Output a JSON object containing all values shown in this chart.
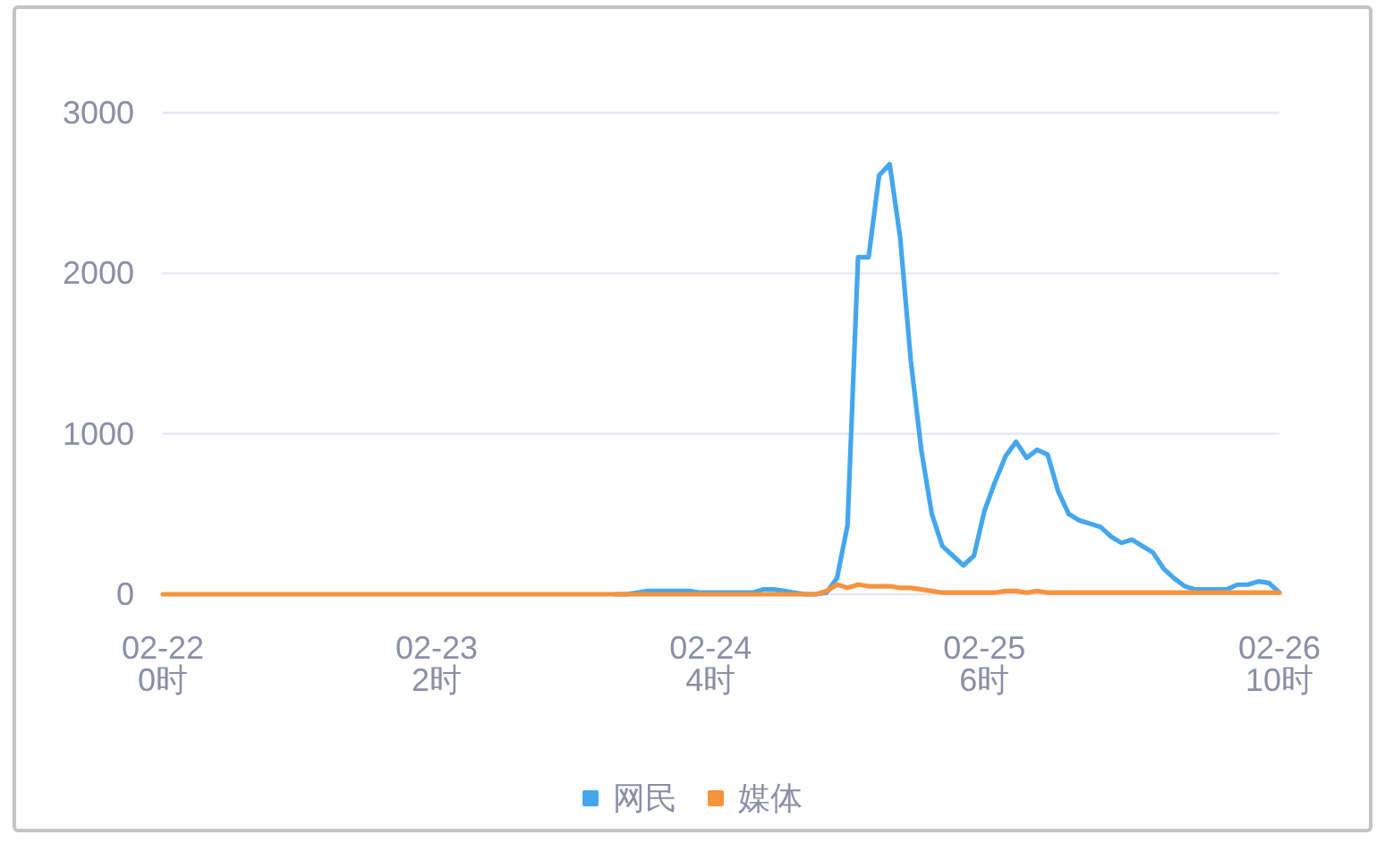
{
  "chart_data": {
    "type": "line",
    "categories": [
      "02-22\n0时",
      null,
      null,
      null,
      null,
      null,
      null,
      null,
      null,
      null,
      null,
      null,
      null,
      null,
      null,
      null,
      null,
      null,
      null,
      null,
      null,
      null,
      null,
      null,
      null,
      null,
      "02-23\n2时",
      null,
      null,
      null,
      null,
      null,
      null,
      null,
      null,
      null,
      null,
      null,
      null,
      null,
      null,
      null,
      null,
      null,
      null,
      null,
      null,
      null,
      null,
      null,
      null,
      null,
      "02-24\n4时",
      null,
      null,
      null,
      null,
      null,
      null,
      null,
      null,
      null,
      null,
      null,
      null,
      null,
      null,
      null,
      null,
      null,
      null,
      null,
      null,
      null,
      null,
      null,
      null,
      null,
      "02-25\n6时",
      null,
      null,
      null,
      null,
      null,
      null,
      null,
      null,
      null,
      null,
      null,
      null,
      null,
      null,
      null,
      null,
      null,
      null,
      null,
      null,
      null,
      null,
      null,
      null,
      null,
      null,
      null,
      "02-26\n10时"
    ],
    "ylim": [
      0,
      3000
    ],
    "yticks": [
      0,
      1000,
      2000,
      3000
    ],
    "grid": "y",
    "legend": "bottom",
    "series": [
      {
        "name": "网民",
        "color": "#44a7ee",
        "values": [
          null,
          null,
          null,
          null,
          null,
          null,
          null,
          null,
          null,
          null,
          null,
          null,
          null,
          null,
          null,
          null,
          null,
          null,
          null,
          null,
          null,
          null,
          null,
          null,
          null,
          null,
          null,
          null,
          null,
          null,
          null,
          null,
          null,
          null,
          null,
          null,
          null,
          null,
          null,
          null,
          null,
          null,
          null,
          0,
          0,
          10,
          20,
          20,
          20,
          20,
          20,
          10,
          10,
          10,
          10,
          10,
          10,
          30,
          30,
          20,
          10,
          0,
          0,
          10,
          100,
          430,
          2100,
          2100,
          2610,
          2680,
          2220,
          1460,
          900,
          500,
          300,
          240,
          180,
          240,
          520,
          700,
          860,
          950,
          850,
          900,
          870,
          640,
          500,
          460,
          440,
          420,
          360,
          320,
          340,
          300,
          260,
          160,
          100,
          50,
          30,
          30,
          30,
          30,
          60,
          60,
          80,
          70,
          10
        ]
      },
      {
        "name": "媒体",
        "color": "#f8933d",
        "values": [
          0,
          0,
          0,
          0,
          0,
          0,
          0,
          0,
          0,
          0,
          0,
          0,
          0,
          0,
          0,
          0,
          0,
          0,
          0,
          0,
          0,
          0,
          0,
          0,
          0,
          0,
          0,
          0,
          0,
          0,
          0,
          0,
          0,
          0,
          0,
          0,
          0,
          0,
          0,
          0,
          0,
          0,
          0,
          0,
          0,
          0,
          0,
          0,
          0,
          0,
          0,
          0,
          0,
          0,
          0,
          0,
          0,
          0,
          0,
          0,
          0,
          0,
          0,
          20,
          60,
          40,
          60,
          50,
          50,
          50,
          40,
          40,
          30,
          20,
          10,
          10,
          10,
          10,
          10,
          10,
          20,
          20,
          10,
          20,
          10,
          10,
          10,
          10,
          10,
          10,
          10,
          10,
          10,
          10,
          10,
          10,
          10,
          10,
          10,
          10,
          10,
          10,
          10,
          10,
          10,
          10,
          10
        ]
      }
    ]
  }
}
